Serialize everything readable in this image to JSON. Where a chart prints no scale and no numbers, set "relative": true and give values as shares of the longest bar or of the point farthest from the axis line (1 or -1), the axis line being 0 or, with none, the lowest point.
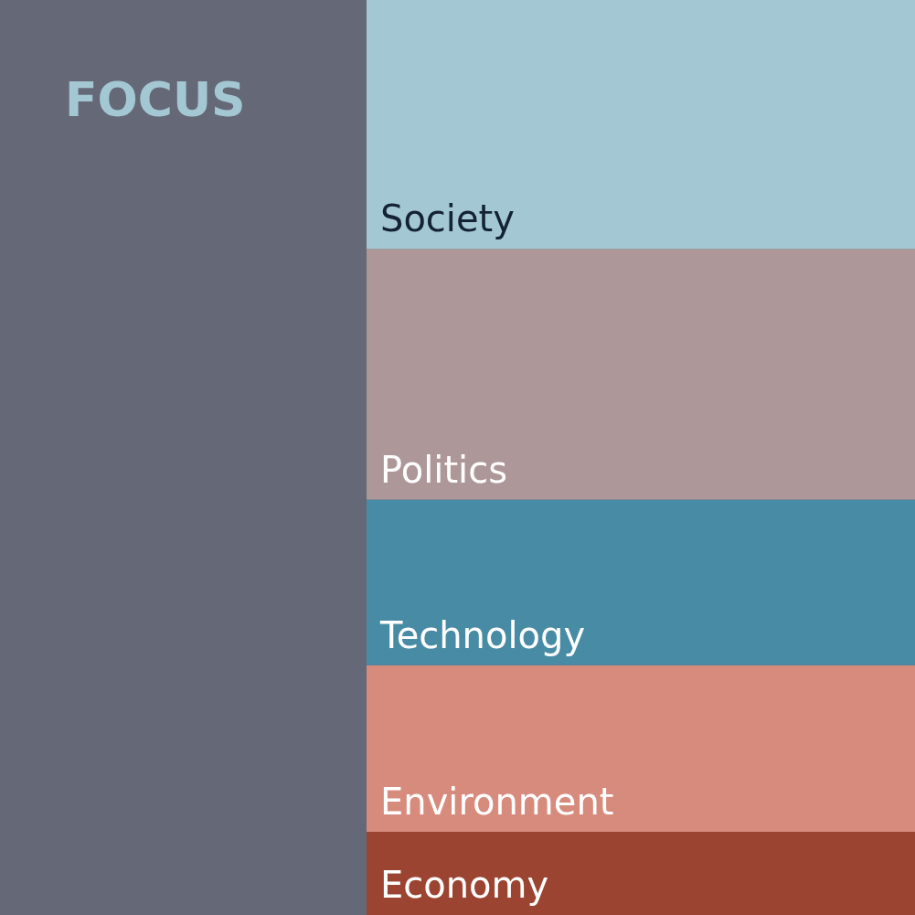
{
  "chart_data": {
    "type": "bar",
    "title": "FOCUS",
    "stacked": true,
    "relative": true,
    "legend": false,
    "tick_labels": false,
    "categories": [
      null
    ],
    "series": [
      {
        "name": "Economy",
        "color": "#9b4431",
        "values": [
          0.091
        ]
      },
      {
        "name": "Environment",
        "color": "#d68b7d",
        "values": [
          0.182
        ]
      },
      {
        "name": "Technology",
        "color": "#488ba4",
        "values": [
          0.181
        ]
      },
      {
        "name": "Politics",
        "color": "#ad9799",
        "values": [
          0.274
        ]
      },
      {
        "name": "Society",
        "color": "#a3c8d3",
        "values": [
          0.272
        ]
      }
    ]
  }
}
